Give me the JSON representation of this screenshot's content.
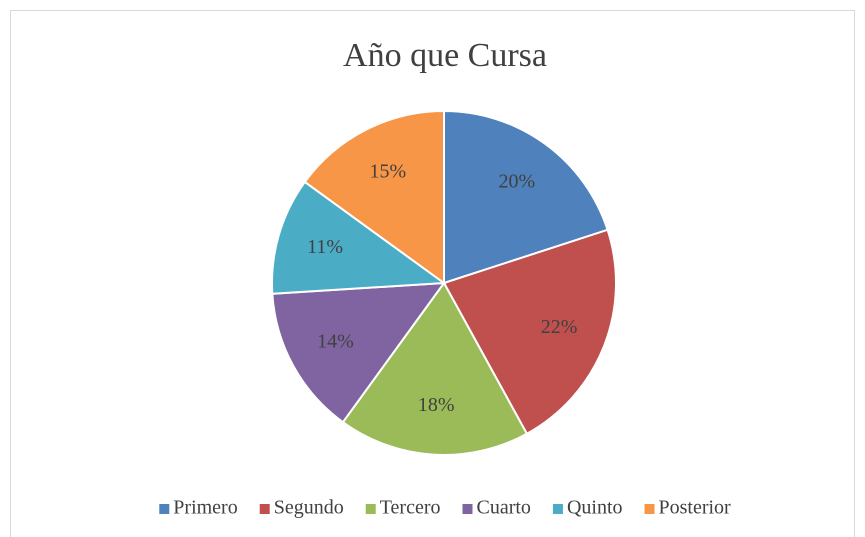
{
  "chart_data": {
    "type": "pie",
    "title": "Año que Cursa",
    "categories": [
      "Primero",
      "Segundo",
      "Tercero",
      "Cuarto",
      "Quinto",
      "Posterior"
    ],
    "values": [
      20,
      22,
      18,
      14,
      11,
      15
    ],
    "value_labels": [
      "20%",
      "22%",
      "18%",
      "14%",
      "11%",
      "15%"
    ],
    "colors": [
      "#4f81bd",
      "#c0504d",
      "#9bbb59",
      "#8064a2",
      "#4bacc6",
      "#f79646"
    ],
    "legend": "bottom"
  }
}
